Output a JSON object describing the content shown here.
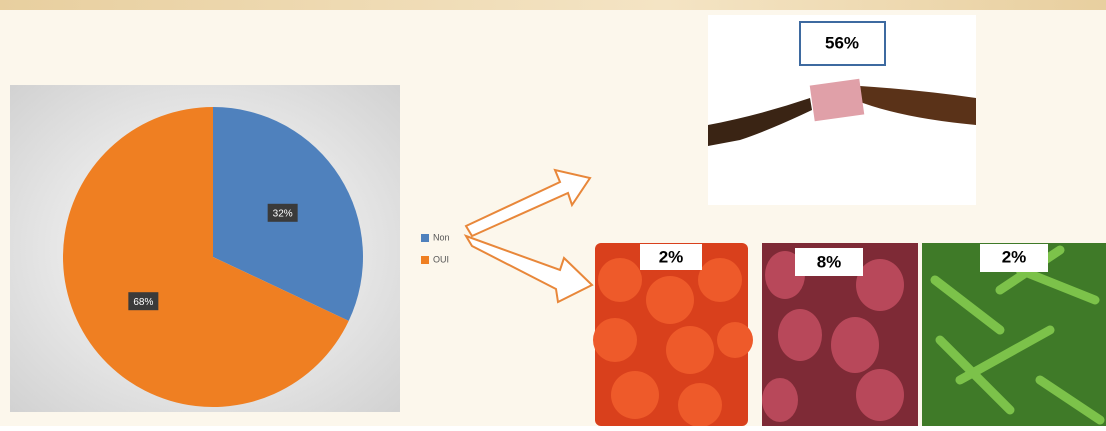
{
  "chart_data": {
    "type": "pie",
    "categories": [
      "Non",
      "OUI"
    ],
    "values": [
      32,
      68
    ],
    "value_labels": [
      "32%",
      "68%"
    ],
    "colors": [
      "#4f81bd",
      "#ef7f22"
    ],
    "legend": "right"
  },
  "annotations": {
    "money": "56%",
    "tomatoes": "2%",
    "onions": "8%",
    "okra": "2%"
  }
}
